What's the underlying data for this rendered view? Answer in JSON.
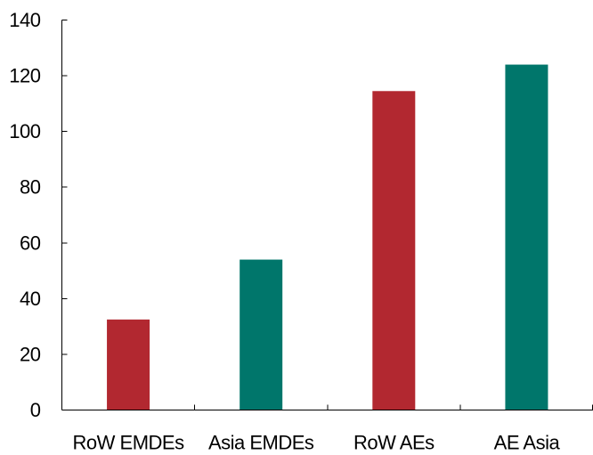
{
  "chart_data": {
    "type": "bar",
    "title": "",
    "xlabel": "",
    "ylabel": "",
    "categories": [
      "RoW EMDEs",
      "Asia EMDEs",
      "RoW AEs",
      "AE Asia"
    ],
    "values": [
      32.5,
      54,
      114.5,
      124
    ],
    "bar_colors": [
      "#B22830",
      "#00766B",
      "#B22830",
      "#00766B"
    ],
    "ylim": [
      0,
      140
    ],
    "yticks": [
      0,
      20,
      40,
      60,
      80,
      100,
      120,
      140
    ],
    "ytick_labels": [
      "0",
      "20",
      "40",
      "60",
      "80",
      "100",
      "120",
      "140"
    ],
    "grid": false,
    "legend": "none"
  }
}
